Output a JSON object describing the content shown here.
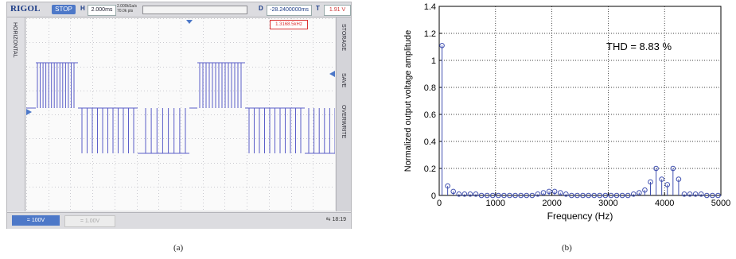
{
  "scope": {
    "brand": "RIGOL",
    "status": "STOP",
    "h_label": "H",
    "timebase": "2.000ms",
    "sample_rate": "2.000kSa/s",
    "memory_depth": "70.0k pts",
    "d_label": "D",
    "delay": "-28.2400000ms",
    "t_label": "T",
    "trigger": "1.91 V",
    "frequency_readout": "1.3168.5kHz",
    "left_panel_top": "HORIZONTAL",
    "right_panel": [
      "STORAGE",
      "SAVE",
      "OVERWRITE"
    ],
    "ch1_label": "= 100V",
    "ch2_label": "= 1.00V",
    "time": "18:19",
    "trace_color": "#5b5ec8",
    "accent": "#4d78c8"
  },
  "captions": {
    "a": "(a)",
    "b": "(b)"
  },
  "chart_data": {
    "type": "stem",
    "title": "",
    "xlabel": "Frequency (Hz)",
    "ylabel": "Normalized output voltage amplitude",
    "xlim": [
      0,
      5000
    ],
    "ylim": [
      0,
      1.4
    ],
    "xticks": [
      0,
      1000,
      2000,
      3000,
      4000,
      5000
    ],
    "yticks": [
      0,
      0.2,
      0.4,
      0.6,
      0.8,
      1,
      1.2,
      1.4
    ],
    "grid": true,
    "annotation": "THD = 8.83 %",
    "x": [
      50,
      150,
      250,
      350,
      450,
      550,
      650,
      750,
      850,
      950,
      1050,
      1150,
      1250,
      1350,
      1450,
      1550,
      1650,
      1750,
      1850,
      1950,
      2050,
      2150,
      2250,
      2350,
      2450,
      2550,
      2650,
      2750,
      2850,
      2950,
      3050,
      3150,
      3250,
      3350,
      3450,
      3550,
      3650,
      3750,
      3850,
      3950,
      4050,
      4150,
      4250,
      4350,
      4450,
      4550,
      4650,
      4750,
      4850,
      4950
    ],
    "y": [
      1.11,
      0.07,
      0.03,
      0.01,
      0.01,
      0.01,
      0.01,
      0.0,
      0.0,
      0.0,
      0.0,
      0.0,
      0.0,
      0.0,
      0.0,
      0.0,
      0.0,
      0.01,
      0.02,
      0.03,
      0.03,
      0.02,
      0.01,
      0.0,
      0.0,
      0.0,
      0.0,
      0.0,
      0.0,
      0.0,
      0.0,
      0.0,
      0.0,
      0.0,
      0.01,
      0.02,
      0.04,
      0.1,
      0.2,
      0.12,
      0.08,
      0.2,
      0.12,
      0.01,
      0.01,
      0.01,
      0.01,
      0.0,
      0.0,
      0.0
    ],
    "color": "#4050b0"
  }
}
